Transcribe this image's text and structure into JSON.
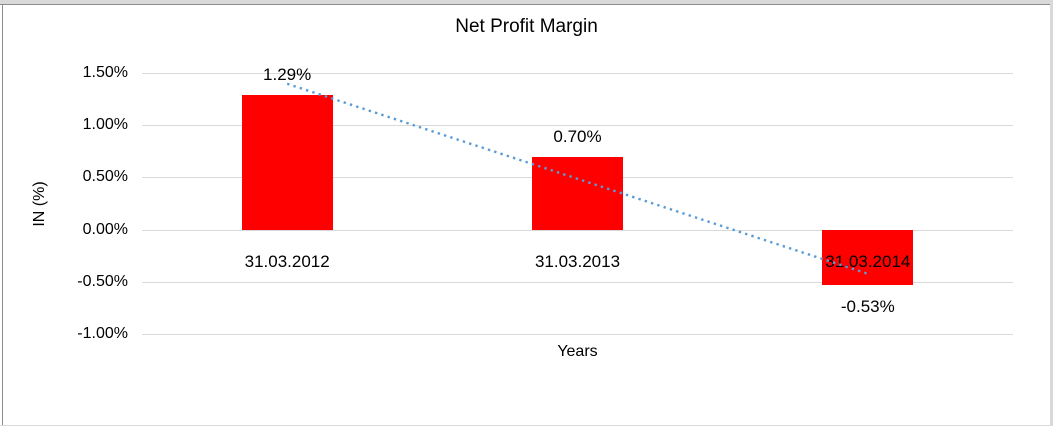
{
  "chart_data": {
    "type": "bar",
    "title": "Net Profit Margin",
    "xlabel": "Years",
    "ylabel": "IN (%)",
    "categories": [
      "31.03.2012",
      "31.03.2013",
      "31.03.2014"
    ],
    "values": [
      1.29,
      0.7,
      -0.53
    ],
    "data_labels": [
      "1.29%",
      "0.70%",
      "-0.53%"
    ],
    "yticks": [
      1.5,
      1.0,
      0.5,
      0.0,
      -0.5,
      -1.0
    ],
    "ytick_labels": [
      "1.50%",
      "1.00%",
      "0.50%",
      "0.00%",
      "-0.50%",
      "-1.00%"
    ],
    "ylim": [
      -1.0,
      1.5
    ],
    "grid": "horizontal",
    "legend": "none",
    "bar_color": "#ff0000",
    "gridline_color": "#d9d9d9",
    "trendline": {
      "type": "linear",
      "style": "dotted",
      "color": "#5b9bd5"
    }
  }
}
